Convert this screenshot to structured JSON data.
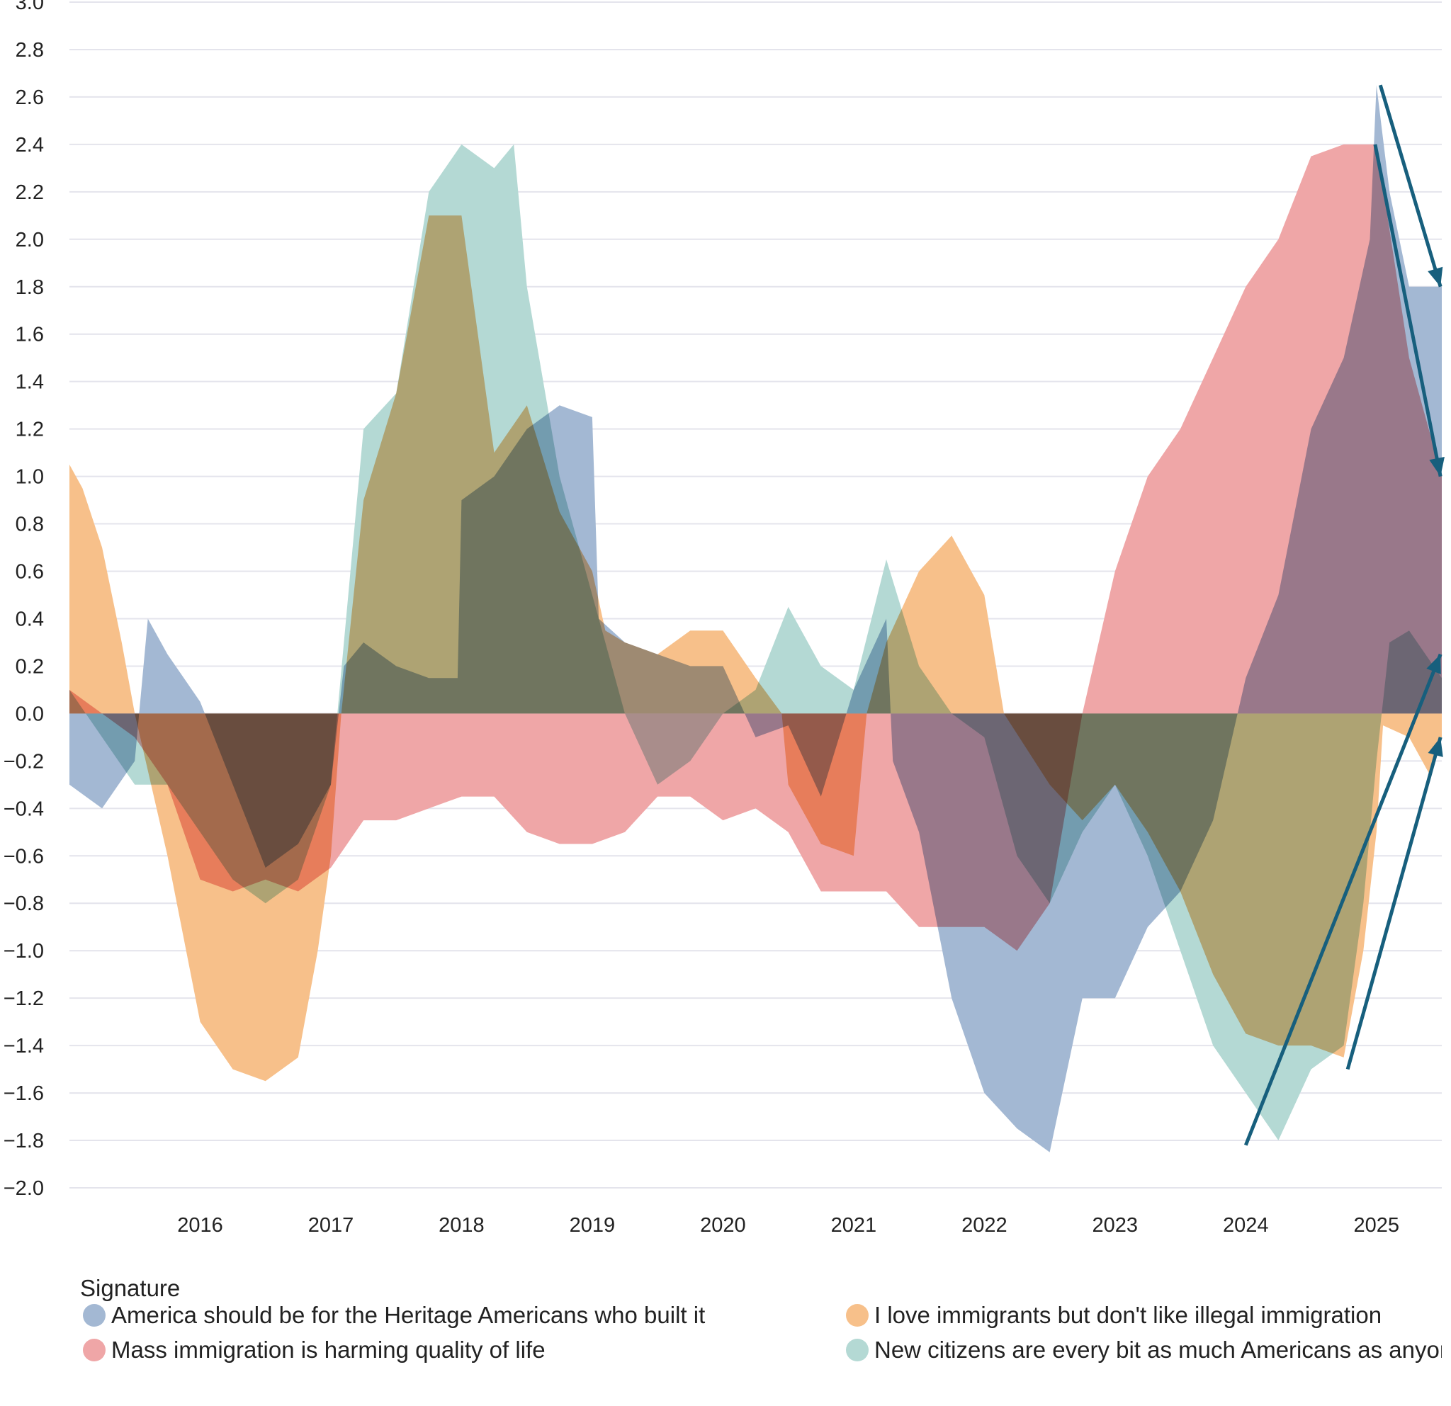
{
  "chart_data": {
    "type": "area",
    "title": "",
    "xlabel": "",
    "ylabel": "",
    "xlim": [
      2015.0,
      2025.5
    ],
    "ylim": [
      -2.0,
      3.0
    ],
    "yticks": [
      "3.0",
      "2.8",
      "2.6",
      "2.4",
      "2.2",
      "2.0",
      "1.8",
      "1.6",
      "1.4",
      "1.2",
      "1.0",
      "0.8",
      "0.6",
      "0.4",
      "0.2",
      "0.0",
      "−0.2",
      "−0.4",
      "−0.6",
      "−0.8",
      "−1.0",
      "−1.2",
      "−1.4",
      "−1.6",
      "−1.8",
      "−2.0"
    ],
    "ytick_values": [
      3.0,
      2.8,
      2.6,
      2.4,
      2.2,
      2.0,
      1.8,
      1.6,
      1.4,
      1.2,
      1.0,
      0.8,
      0.6,
      0.4,
      0.2,
      0.0,
      -0.2,
      -0.4,
      -0.6,
      -0.8,
      -1.0,
      -1.2,
      -1.4,
      -1.6,
      -1.8,
      -2.0
    ],
    "xticks": [
      "2016",
      "2017",
      "2018",
      "2019",
      "2020",
      "2021",
      "2022",
      "2023",
      "2024",
      "2025"
    ],
    "xtick_values": [
      2016,
      2017,
      2018,
      2019,
      2020,
      2021,
      2022,
      2023,
      2024,
      2025
    ],
    "grid": "horizontal",
    "legend": {
      "title": "Signature",
      "placement": "bottom"
    },
    "series": [
      {
        "name": "America should be for the Heritage Americans who built it",
        "color": "#a3b8d3",
        "points": [
          [
            2015.0,
            -0.3
          ],
          [
            2015.25,
            -0.4
          ],
          [
            2015.5,
            -0.2
          ],
          [
            2015.6,
            0.4
          ],
          [
            2015.75,
            0.25
          ],
          [
            2016.0,
            0.05
          ],
          [
            2016.25,
            -0.3
          ],
          [
            2016.5,
            -0.65
          ],
          [
            2016.75,
            -0.55
          ],
          [
            2017.0,
            -0.3
          ],
          [
            2017.1,
            0.2
          ],
          [
            2017.25,
            0.3
          ],
          [
            2017.5,
            0.2
          ],
          [
            2017.75,
            0.15
          ],
          [
            2017.97,
            0.15
          ],
          [
            2018.0,
            0.9
          ],
          [
            2018.25,
            1.0
          ],
          [
            2018.5,
            1.2
          ],
          [
            2018.75,
            1.3
          ],
          [
            2019.0,
            1.25
          ],
          [
            2019.05,
            0.4
          ],
          [
            2019.25,
            0.3
          ],
          [
            2019.5,
            0.25
          ],
          [
            2019.75,
            0.2
          ],
          [
            2020.0,
            0.2
          ],
          [
            2020.25,
            -0.1
          ],
          [
            2020.5,
            -0.05
          ],
          [
            2020.75,
            -0.35
          ],
          [
            2021.0,
            0.1
          ],
          [
            2021.25,
            0.4
          ],
          [
            2021.3,
            -0.2
          ],
          [
            2021.5,
            -0.5
          ],
          [
            2021.75,
            -1.2
          ],
          [
            2022.0,
            -1.6
          ],
          [
            2022.25,
            -1.75
          ],
          [
            2022.5,
            -1.85
          ],
          [
            2022.75,
            -1.2
          ],
          [
            2023.0,
            -1.2
          ],
          [
            2023.25,
            -0.9
          ],
          [
            2023.5,
            -0.75
          ],
          [
            2023.75,
            -0.45
          ],
          [
            2024.0,
            0.15
          ],
          [
            2024.25,
            0.5
          ],
          [
            2024.5,
            1.2
          ],
          [
            2024.75,
            1.5
          ],
          [
            2024.95,
            2.0
          ],
          [
            2025.0,
            2.65
          ],
          [
            2025.1,
            2.2
          ],
          [
            2025.25,
            1.8
          ],
          [
            2025.5,
            1.8
          ]
        ]
      },
      {
        "name": "I love immigrants but don't like illegal immigration",
        "color": "#f7c08a",
        "points": [
          [
            2015.0,
            1.05
          ],
          [
            2015.1,
            0.95
          ],
          [
            2015.25,
            0.7
          ],
          [
            2015.4,
            0.3
          ],
          [
            2015.5,
            0.0
          ],
          [
            2015.75,
            -0.6
          ],
          [
            2016.0,
            -1.3
          ],
          [
            2016.25,
            -1.5
          ],
          [
            2016.5,
            -1.55
          ],
          [
            2016.75,
            -1.45
          ],
          [
            2016.9,
            -1.0
          ],
          [
            2017.0,
            -0.6
          ],
          [
            2017.08,
            0.0
          ],
          [
            2017.25,
            0.9
          ],
          [
            2017.5,
            1.35
          ],
          [
            2017.75,
            2.1
          ],
          [
            2018.0,
            2.1
          ],
          [
            2018.25,
            1.1
          ],
          [
            2018.5,
            1.3
          ],
          [
            2018.75,
            0.85
          ],
          [
            2019.0,
            0.6
          ],
          [
            2019.1,
            0.35
          ],
          [
            2019.25,
            0.3
          ],
          [
            2019.5,
            0.25
          ],
          [
            2019.75,
            0.35
          ],
          [
            2020.0,
            0.35
          ],
          [
            2020.25,
            0.15
          ],
          [
            2020.45,
            0.0
          ],
          [
            2020.5,
            -0.3
          ],
          [
            2020.75,
            -0.55
          ],
          [
            2021.0,
            -0.6
          ],
          [
            2021.1,
            0.0
          ],
          [
            2021.25,
            0.3
          ],
          [
            2021.5,
            0.6
          ],
          [
            2021.75,
            0.75
          ],
          [
            2022.0,
            0.5
          ],
          [
            2022.15,
            0.0
          ],
          [
            2022.5,
            -0.3
          ],
          [
            2022.75,
            -0.45
          ],
          [
            2023.0,
            -0.3
          ],
          [
            2023.25,
            -0.5
          ],
          [
            2023.5,
            -0.75
          ],
          [
            2023.75,
            -1.1
          ],
          [
            2024.0,
            -1.35
          ],
          [
            2024.25,
            -1.4
          ],
          [
            2024.5,
            -1.4
          ],
          [
            2024.75,
            -1.45
          ],
          [
            2024.9,
            -1.0
          ],
          [
            2025.0,
            -0.5
          ],
          [
            2025.05,
            -0.05
          ],
          [
            2025.25,
            -0.1
          ],
          [
            2025.4,
            -0.25
          ],
          [
            2025.5,
            -0.1
          ]
        ]
      },
      {
        "name": "Mass immigration is harming quality of life",
        "color": "#efa6a7",
        "points": [
          [
            2015.0,
            0.1
          ],
          [
            2015.25,
            0.0
          ],
          [
            2015.5,
            -0.1
          ],
          [
            2015.75,
            -0.3
          ],
          [
            2016.0,
            -0.7
          ],
          [
            2016.25,
            -0.75
          ],
          [
            2016.5,
            -0.7
          ],
          [
            2016.75,
            -0.75
          ],
          [
            2017.0,
            -0.65
          ],
          [
            2017.25,
            -0.45
          ],
          [
            2017.5,
            -0.45
          ],
          [
            2017.75,
            -0.4
          ],
          [
            2018.0,
            -0.35
          ],
          [
            2018.25,
            -0.35
          ],
          [
            2018.5,
            -0.5
          ],
          [
            2018.75,
            -0.55
          ],
          [
            2019.0,
            -0.55
          ],
          [
            2019.25,
            -0.5
          ],
          [
            2019.5,
            -0.35
          ],
          [
            2019.75,
            -0.35
          ],
          [
            2020.0,
            -0.45
          ],
          [
            2020.25,
            -0.4
          ],
          [
            2020.5,
            -0.5
          ],
          [
            2020.75,
            -0.75
          ],
          [
            2021.0,
            -0.75
          ],
          [
            2021.25,
            -0.75
          ],
          [
            2021.5,
            -0.9
          ],
          [
            2021.75,
            -0.9
          ],
          [
            2022.0,
            -0.9
          ],
          [
            2022.25,
            -1.0
          ],
          [
            2022.5,
            -0.8
          ],
          [
            2022.75,
            0.0
          ],
          [
            2023.0,
            0.6
          ],
          [
            2023.25,
            1.0
          ],
          [
            2023.5,
            1.2
          ],
          [
            2023.75,
            1.5
          ],
          [
            2024.0,
            1.8
          ],
          [
            2024.25,
            2.0
          ],
          [
            2024.5,
            2.35
          ],
          [
            2024.75,
            2.4
          ],
          [
            2025.0,
            2.4
          ],
          [
            2025.25,
            1.5
          ],
          [
            2025.5,
            1.0
          ]
        ]
      },
      {
        "name": "New citizens are every bit as much Americans as anyone",
        "color": "#b4d9d4",
        "points": [
          [
            2015.0,
            0.1
          ],
          [
            2015.25,
            -0.1
          ],
          [
            2015.5,
            -0.3
          ],
          [
            2015.75,
            -0.3
          ],
          [
            2016.0,
            -0.5
          ],
          [
            2016.25,
            -0.7
          ],
          [
            2016.5,
            -0.8
          ],
          [
            2016.75,
            -0.7
          ],
          [
            2017.0,
            -0.3
          ],
          [
            2017.1,
            0.3
          ],
          [
            2017.25,
            1.2
          ],
          [
            2017.5,
            1.35
          ],
          [
            2017.75,
            2.2
          ],
          [
            2018.0,
            2.4
          ],
          [
            2018.25,
            2.3
          ],
          [
            2018.4,
            2.4
          ],
          [
            2018.5,
            1.8
          ],
          [
            2018.75,
            1.0
          ],
          [
            2019.0,
            0.5
          ],
          [
            2019.25,
            0.0
          ],
          [
            2019.5,
            -0.3
          ],
          [
            2019.75,
            -0.2
          ],
          [
            2020.0,
            0.0
          ],
          [
            2020.25,
            0.1
          ],
          [
            2020.5,
            0.45
          ],
          [
            2020.75,
            0.2
          ],
          [
            2021.0,
            0.1
          ],
          [
            2021.25,
            0.65
          ],
          [
            2021.5,
            0.2
          ],
          [
            2021.75,
            0.0
          ],
          [
            2022.0,
            -0.1
          ],
          [
            2022.25,
            -0.6
          ],
          [
            2022.5,
            -0.8
          ],
          [
            2022.75,
            -0.5
          ],
          [
            2023.0,
            -0.3
          ],
          [
            2023.25,
            -0.6
          ],
          [
            2023.5,
            -1.0
          ],
          [
            2023.75,
            -1.4
          ],
          [
            2024.0,
            -1.6
          ],
          [
            2024.25,
            -1.8
          ],
          [
            2024.5,
            -1.5
          ],
          [
            2024.75,
            -1.4
          ],
          [
            2024.9,
            -0.8
          ],
          [
            2025.0,
            -0.2
          ],
          [
            2025.1,
            0.3
          ],
          [
            2025.25,
            0.35
          ],
          [
            2025.5,
            0.15
          ]
        ]
      }
    ],
    "annotations": {
      "color": "#175f7d",
      "arrows": [
        {
          "from": [
            2025.03,
            2.65
          ],
          "to": [
            2025.49,
            1.8
          ]
        },
        {
          "from": [
            2024.99,
            2.4
          ],
          "to": [
            2025.49,
            1.0
          ]
        },
        {
          "from": [
            2024.0,
            -1.82
          ],
          "to": [
            2025.49,
            0.25
          ]
        },
        {
          "from": [
            2024.78,
            -1.5
          ],
          "to": [
            2025.49,
            -0.1
          ]
        }
      ]
    }
  }
}
